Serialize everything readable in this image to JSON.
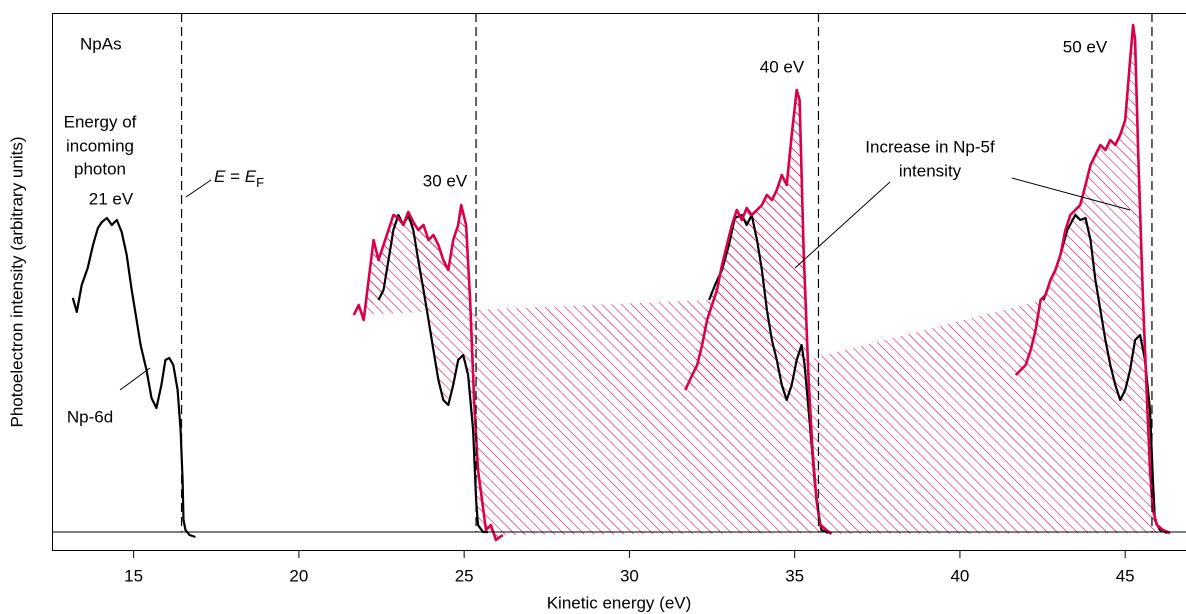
{
  "chart_data": {
    "type": "line",
    "x_label": "Kinetic energy (eV)",
    "y_label": "Photoelectron intensity (arbitrary units)",
    "xlim": [
      12.53,
      46.84
    ],
    "ylim": [
      -18,
      519
    ],
    "xticks": [
      15,
      20,
      25,
      30,
      35,
      40,
      45
    ],
    "fermi_levels": [
      16.45,
      25.36,
      35.72,
      45.81
    ],
    "fermi_label": [
      "E",
      " = ",
      "E",
      "F"
    ],
    "sample": "NpAs",
    "photon_label": [
      "Energy of",
      "incoming",
      "photon"
    ],
    "np6d_label": "Np-6d",
    "np5f_label": [
      "Increase in Np-5f",
      "intensity"
    ],
    "hatch_color": "#d9004c",
    "series": [
      {
        "name": "21 eV",
        "color": "#000000",
        "x": [
          13.16,
          13.28,
          13.43,
          13.61,
          13.77,
          13.92,
          14.04,
          14.19,
          14.34,
          14.49,
          14.64,
          14.79,
          14.94,
          15.09,
          15.21,
          15.39,
          15.54,
          15.69,
          15.84,
          15.96,
          16.08,
          16.2,
          16.33,
          16.42,
          16.48,
          16.51,
          16.57,
          16.69,
          16.87
        ],
        "values": [
          234,
          220,
          247,
          264,
          287,
          304,
          310,
          314,
          307,
          312,
          300,
          277,
          242,
          212,
          187,
          162,
          134,
          124,
          147,
          172,
          174,
          167,
          142,
          102,
          52,
          12,
          2,
          -3,
          -5
        ]
      },
      {
        "color": "#000000",
        "x": [
          22.41,
          22.56,
          22.71,
          22.86,
          23.01,
          23.16,
          23.31,
          23.46,
          23.61,
          23.77,
          23.92,
          24.07,
          24.22,
          24.37,
          24.52,
          24.67,
          24.82,
          24.97,
          25.12,
          25.27,
          25.36,
          25.42,
          25.57,
          25.72
        ],
        "values": [
          232,
          242,
          272,
          302,
          317,
          307,
          317,
          302,
          272,
          242,
          212,
          182,
          152,
          132,
          127,
          147,
          172,
          177,
          157,
          102,
          32,
          7,
          0,
          0
        ]
      },
      {
        "name": "30 eV",
        "color": "#d9004c",
        "x": [
          21.66,
          21.81,
          21.96,
          22.11,
          22.26,
          22.41,
          22.56,
          22.71,
          22.86,
          23.01,
          23.16,
          23.31,
          23.46,
          23.61,
          23.77,
          23.92,
          24.07,
          24.22,
          24.37,
          24.52,
          24.67,
          24.82,
          24.91,
          25.06,
          25.18,
          25.3,
          25.42,
          25.54,
          25.66,
          25.81,
          25.96,
          26.17
        ],
        "values": [
          217,
          227,
          212,
          252,
          292,
          272,
          287,
          302,
          317,
          314,
          307,
          320,
          310,
          302,
          307,
          292,
          297,
          287,
          272,
          262,
          292,
          307,
          327,
          307,
          232,
          132,
          62,
          32,
          2,
          7,
          -8,
          -3
        ]
      },
      {
        "color": "#000000",
        "x": [
          32.41,
          32.59,
          32.8,
          33.01,
          33.19,
          33.4,
          33.55,
          33.7,
          33.86,
          34.01,
          34.16,
          34.31,
          34.46,
          34.61,
          34.76,
          34.91,
          35.06,
          35.21,
          35.3,
          35.45,
          35.6,
          35.72,
          35.81,
          36.02
        ],
        "values": [
          232,
          247,
          262,
          287,
          314,
          317,
          307,
          317,
          292,
          262,
          222,
          192,
          172,
          147,
          132,
          147,
          172,
          187,
          167,
          112,
          52,
          17,
          2,
          -1
        ]
      },
      {
        "name": "40 eV",
        "color": "#d9004c",
        "x": [
          31.69,
          31.9,
          32.05,
          32.2,
          32.35,
          32.5,
          32.65,
          32.8,
          32.95,
          33.1,
          33.25,
          33.4,
          33.55,
          33.7,
          33.86,
          34.01,
          34.16,
          34.31,
          34.46,
          34.61,
          34.76,
          34.91,
          35.06,
          35.15,
          35.27,
          35.42,
          35.54,
          35.66,
          35.78,
          35.96,
          36.11
        ],
        "values": [
          142,
          157,
          167,
          187,
          212,
          227,
          242,
          267,
          287,
          307,
          322,
          312,
          324,
          317,
          322,
          327,
          337,
          332,
          342,
          357,
          347,
          397,
          442,
          432,
          282,
          152,
          82,
          32,
          7,
          2,
          -2
        ]
      },
      {
        "color": "#000000",
        "x": [
          42.53,
          42.74,
          42.89,
          43.04,
          43.25,
          43.49,
          43.64,
          43.8,
          43.95,
          44.1,
          44.25,
          44.4,
          44.55,
          44.7,
          44.85,
          45.0,
          45.15,
          45.3,
          45.45,
          45.6,
          45.75,
          45.84,
          45.9,
          46.05,
          46.27
        ],
        "values": [
          232,
          252,
          262,
          277,
          302,
          317,
          312,
          314,
          292,
          252,
          222,
          192,
          167,
          147,
          132,
          142,
          162,
          192,
          197,
          172,
          122,
          52,
          12,
          2,
          -1
        ]
      },
      {
        "name": "50 eV",
        "color": "#d9004c",
        "x": [
          41.69,
          41.84,
          41.99,
          42.14,
          42.29,
          42.44,
          42.59,
          42.74,
          42.89,
          43.04,
          43.19,
          43.34,
          43.49,
          43.64,
          43.8,
          43.95,
          44.1,
          44.25,
          44.4,
          44.55,
          44.7,
          44.85,
          45.0,
          45.15,
          45.24,
          45.3,
          45.39,
          45.54,
          45.66,
          45.75,
          45.84,
          45.96,
          46.14,
          46.36
        ],
        "values": [
          157,
          162,
          167,
          182,
          202,
          232,
          237,
          252,
          262,
          277,
          302,
          317,
          322,
          327,
          347,
          367,
          377,
          387,
          382,
          392,
          387,
          397,
          412,
          472,
          507,
          492,
          382,
          232,
          132,
          62,
          22,
          7,
          2,
          -1
        ]
      }
    ]
  }
}
